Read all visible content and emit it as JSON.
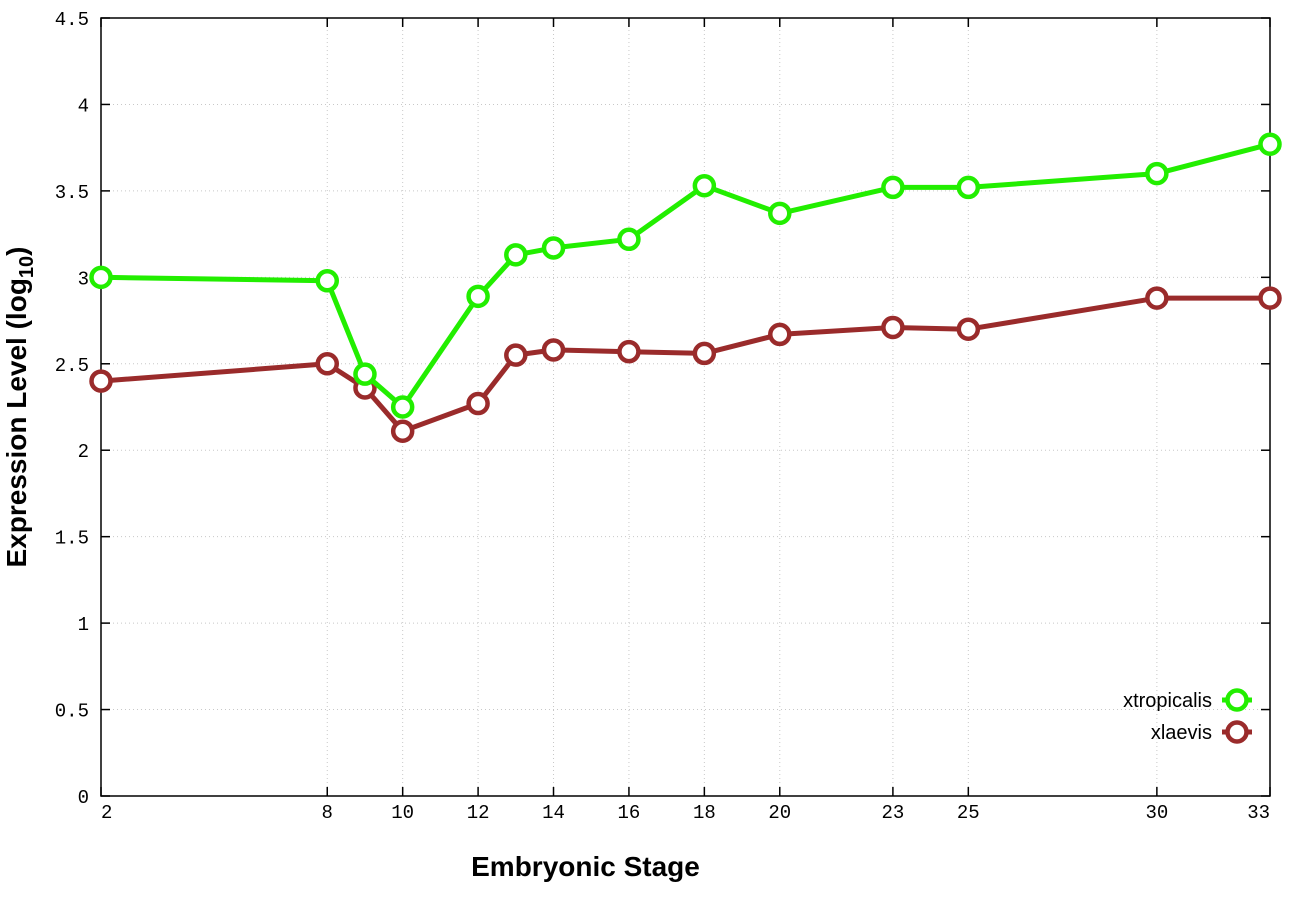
{
  "chart_data": {
    "type": "line",
    "title": "",
    "xlabel": "Embryonic Stage",
    "ylabel_main": "Expression Level (log",
    "ylabel_sub": "10",
    "ylabel_close": ")",
    "x": [
      2,
      8,
      9,
      10,
      12,
      13,
      14,
      16,
      18,
      20,
      23,
      25,
      30,
      33
    ],
    "xlim": [
      2,
      33
    ],
    "x_ticks": [
      2,
      8,
      10,
      12,
      14,
      16,
      18,
      20,
      23,
      25,
      30,
      33
    ],
    "x_tick_labels": [
      "2",
      "8",
      "10",
      "12",
      "14",
      "16",
      "18",
      "20",
      "23",
      "25",
      "30",
      "33"
    ],
    "ylim": [
      0,
      4.5
    ],
    "y_ticks": [
      0,
      0.5,
      1,
      1.5,
      2,
      2.5,
      3,
      3.5,
      4,
      4.5
    ],
    "y_tick_labels": [
      "0",
      "0.5",
      "1",
      "1.5",
      "2",
      "2.5",
      "3",
      "3.5",
      "4",
      "4.5"
    ],
    "grid": true,
    "legend_position": "bottom-right",
    "series": [
      {
        "name": "xtropicalis",
        "color": "#22ee00",
        "marker": "circle",
        "values": [
          3.0,
          2.98,
          2.44,
          2.25,
          2.89,
          3.13,
          3.17,
          3.22,
          3.53,
          3.37,
          3.52,
          3.52,
          3.6,
          3.77
        ]
      },
      {
        "name": "xlaevis",
        "color": "#9a2b2b",
        "marker": "circle",
        "values": [
          2.4,
          2.5,
          2.36,
          2.11,
          2.27,
          2.55,
          2.58,
          2.57,
          2.56,
          2.67,
          2.71,
          2.7,
          2.88,
          2.88
        ]
      }
    ]
  }
}
